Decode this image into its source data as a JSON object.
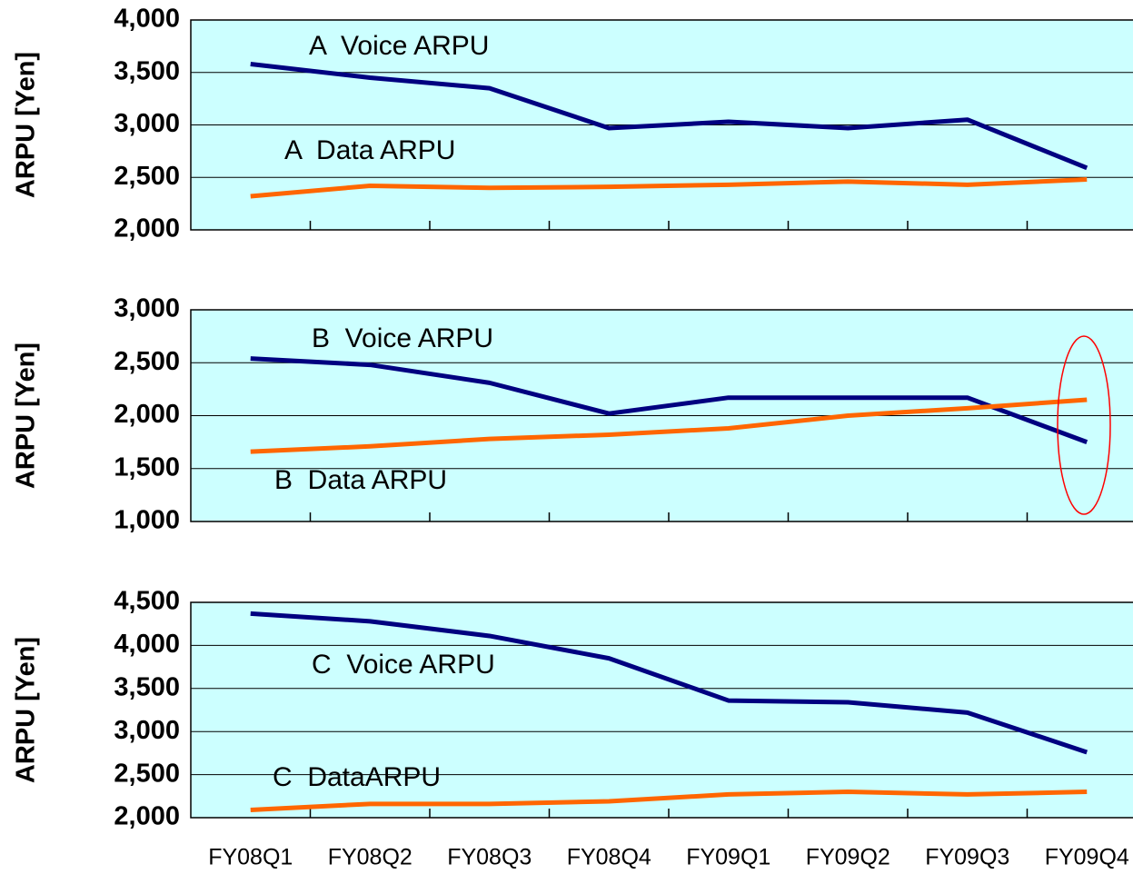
{
  "chart_data": [
    {
      "type": "line",
      "y_label": "ARPU [Yen]",
      "series": [
        {
          "name": "A  Voice ARPU",
          "color": "#000080",
          "values": [
            3580,
            3450,
            3350,
            2970,
            3030,
            2970,
            3050,
            2590
          ]
        },
        {
          "name": "A  Data ARPU",
          "color": "#ff6600",
          "values": [
            2320,
            2420,
            2400,
            2410,
            2430,
            2460,
            2430,
            2480
          ]
        }
      ],
      "ylim": [
        2000,
        4000
      ],
      "yticks": [
        {
          "value": 2000,
          "label": "2,000"
        },
        {
          "value": 2500,
          "label": "2,500"
        },
        {
          "value": 3000,
          "label": "3,000"
        },
        {
          "value": 3500,
          "label": "3,500"
        },
        {
          "value": 4000,
          "label": "4,000"
        }
      ],
      "grid": true
    },
    {
      "type": "line",
      "y_label": "ARPU [Yen]",
      "series": [
        {
          "name": "B  Voice ARPU",
          "color": "#000080",
          "values": [
            2540,
            2480,
            2310,
            2020,
            2170,
            2170,
            2170,
            1750
          ]
        },
        {
          "name": "B  Data ARPU",
          "color": "#ff6600",
          "values": [
            1660,
            1710,
            1780,
            1820,
            1880,
            2000,
            2070,
            2150
          ]
        }
      ],
      "ylim": [
        1000,
        3000
      ],
      "yticks": [
        {
          "value": 1000,
          "label": "1,000"
        },
        {
          "value": 1500,
          "label": "1,500"
        },
        {
          "value": 2000,
          "label": "2,000"
        },
        {
          "value": 2500,
          "label": "2,500"
        },
        {
          "value": 3000,
          "label": "3,000"
        }
      ],
      "grid": true
    },
    {
      "type": "line",
      "y_label": "ARPU [Yen]",
      "categories": [
        "FY08Q1",
        "FY08Q2",
        "FY08Q3",
        "FY08Q4",
        "FY09Q1",
        "FY09Q2",
        "FY09Q3",
        "FY09Q4"
      ],
      "series": [
        {
          "name": "C  Voice ARPU",
          "color": "#000080",
          "values": [
            4370,
            4280,
            4110,
            3850,
            3360,
            3340,
            3220,
            2760
          ]
        },
        {
          "name": "C  DataARPU",
          "color": "#ff6600",
          "values": [
            2090,
            2160,
            2160,
            2190,
            2270,
            2300,
            2270,
            2300
          ]
        }
      ],
      "ylim": [
        2000,
        4500
      ],
      "yticks": [
        {
          "value": 2000,
          "label": "2,000"
        },
        {
          "value": 2500,
          "label": "2,500"
        },
        {
          "value": 3000,
          "label": "3,000"
        },
        {
          "value": 3500,
          "label": "3,500"
        },
        {
          "value": 4000,
          "label": "4,000"
        },
        {
          "value": 4500,
          "label": "4,500"
        }
      ],
      "grid": true
    }
  ]
}
